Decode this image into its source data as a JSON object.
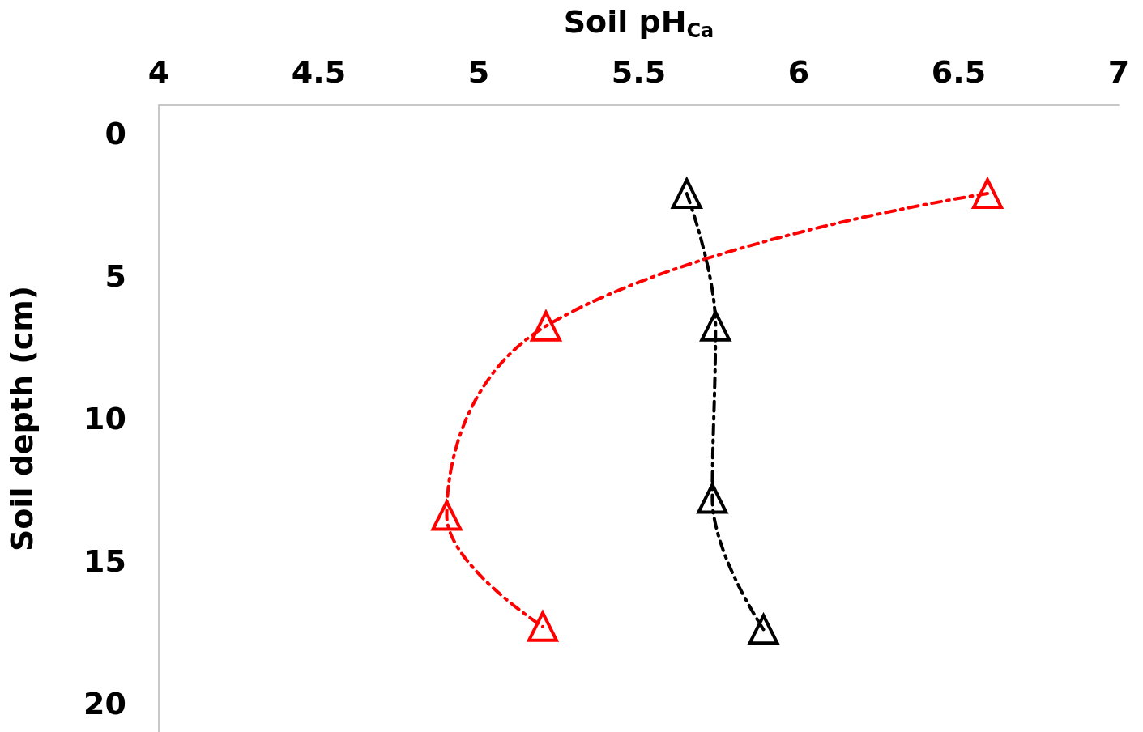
{
  "chart_data": {
    "type": "line",
    "xlabel": "Soil pH$_{Ca}$",
    "ylabel": "Soil depth (cm)",
    "xlim": [
      4,
      7
    ],
    "xticks": [
      4,
      4.5,
      5,
      5.5,
      6,
      6.5,
      7
    ],
    "ylim": [
      21,
      -1
    ],
    "yticks": [
      0,
      5,
      10,
      15,
      20
    ],
    "grid": false,
    "marker": "triangle",
    "line_style": "dashed",
    "series": [
      {
        "color": "#ff0000",
        "x": [
          6.59,
          5.21,
          4.9,
          5.2
        ],
        "values": [
          2.1,
          6.75,
          13.4,
          17.3
        ]
      },
      {
        "color": "#000000",
        "x": [
          5.65,
          5.74,
          5.73,
          5.89
        ],
        "values": [
          2.1,
          6.75,
          12.8,
          17.4
        ]
      }
    ]
  }
}
